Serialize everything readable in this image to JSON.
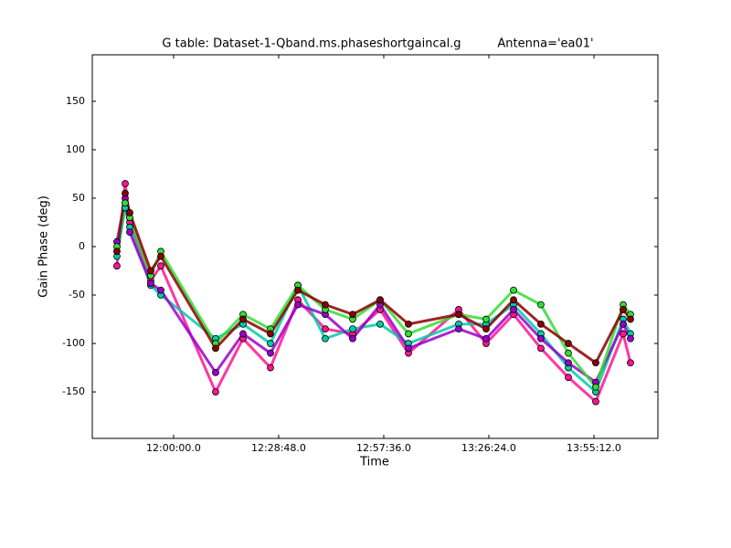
{
  "chart_data": {
    "type": "line",
    "title": "G table: Dataset-1-Qband.ms.phaseshortgaincal.g",
    "subtitle": "Antenna='ea01'",
    "x_label": "Time",
    "y_label": "Gain Phase (deg)",
    "x": [
      42268,
      42404,
      42479,
      42824,
      42990,
      43891,
      44342,
      44793,
      45244,
      45694,
      46145,
      46596,
      47062,
      47888,
      48339,
      48790,
      49240,
      49691,
      50142,
      50593,
      50713
    ],
    "series": [
      {
        "color": "#ff1493",
        "values": [
          -20,
          65,
          25,
          -35,
          -20,
          -150,
          -95,
          -125,
          -55,
          -85,
          -90,
          -65,
          -110,
          -65,
          -100,
          -70,
          -105,
          -135,
          -160,
          -90,
          -120
        ]
      },
      {
        "color": "#00ccaa",
        "values": [
          -10,
          40,
          20,
          -40,
          -50,
          -95,
          -80,
          -100,
          -40,
          -95,
          -85,
          -80,
          -100,
          -80,
          -80,
          -60,
          -90,
          -125,
          -150,
          -75,
          -90
        ]
      },
      {
        "color": "#9900cc",
        "values": [
          5,
          50,
          15,
          -38,
          -45,
          -130,
          -90,
          -110,
          -60,
          -70,
          -95,
          -60,
          -105,
          -85,
          -95,
          -65,
          -95,
          -120,
          -140,
          -80,
          -95
        ]
      },
      {
        "color": "#33dd33",
        "values": [
          0,
          45,
          30,
          -30,
          -5,
          -100,
          -70,
          -85,
          -40,
          -65,
          -75,
          -55,
          -90,
          -70,
          -75,
          -45,
          -60,
          -110,
          -145,
          -60,
          -70
        ]
      },
      {
        "color": "#8b0000",
        "values": [
          -5,
          55,
          35,
          -25,
          -10,
          -105,
          -75,
          -90,
          -45,
          -60,
          -70,
          -55,
          -80,
          -70,
          -85,
          -55,
          -80,
          -100,
          -120,
          -65,
          -75
        ]
      }
    ],
    "xlim": [
      41863,
      51164
    ],
    "xticks": [
      {
        "value": 43200,
        "label": "12:00:00.0"
      },
      {
        "value": 44928,
        "label": "12:28:48.0"
      },
      {
        "value": 46656,
        "label": "12:57:36.0"
      },
      {
        "value": 48384,
        "label": "13:26:24.0"
      },
      {
        "value": 50112,
        "label": "13:55:12.0"
      }
    ],
    "ylim": [
      -198,
      198
    ],
    "yticks": [
      -150,
      -100,
      -50,
      0,
      50,
      100,
      150
    ]
  }
}
